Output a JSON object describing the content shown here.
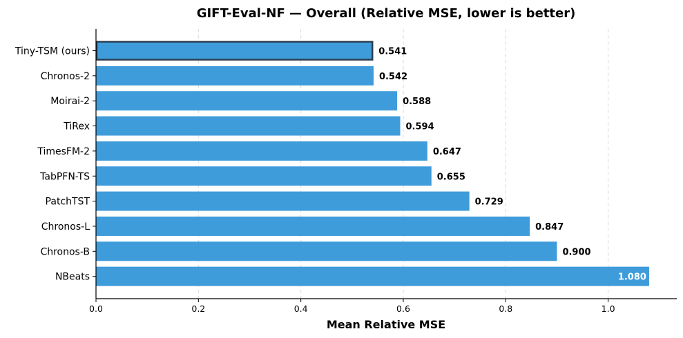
{
  "chart_data": {
    "type": "bar",
    "orientation": "horizontal",
    "title": "GIFT-Eval-NF — Overall (Relative MSE, lower is better)",
    "xlabel": "Mean Relative MSE",
    "ylabel": "",
    "xlim": [
      0,
      1.134
    ],
    "xticks": [
      0.0,
      0.2,
      0.4,
      0.6,
      0.8,
      1.0
    ],
    "xtick_labels": [
      "0.0",
      "0.2",
      "0.4",
      "0.6",
      "0.8",
      "1.0"
    ],
    "grid": "x",
    "categories": [
      "Tiny-TSM (ours)",
      "Chronos-2",
      "Moirai-2",
      "TiRex",
      "TimesFM-2",
      "TabPFN-TS",
      "PatchTST",
      "Chronos-L",
      "Chronos-B",
      "NBeats"
    ],
    "values": [
      0.541,
      0.542,
      0.588,
      0.594,
      0.647,
      0.655,
      0.729,
      0.847,
      0.9,
      1.08
    ],
    "value_labels": [
      "0.541",
      "0.542",
      "0.588",
      "0.594",
      "0.647",
      "0.655",
      "0.729",
      "0.847",
      "0.900",
      "1.080"
    ],
    "highlighted": "Tiny-TSM (ours)",
    "bar_color": "#3e9cdb",
    "highlight_edge_color": "#2b3e50"
  }
}
